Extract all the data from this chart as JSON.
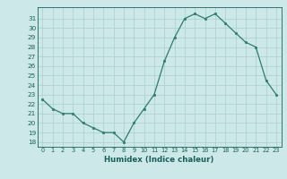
{
  "x": [
    0,
    1,
    2,
    3,
    4,
    5,
    6,
    7,
    8,
    9,
    10,
    11,
    12,
    13,
    14,
    15,
    16,
    17,
    18,
    19,
    20,
    21,
    22,
    23
  ],
  "y": [
    22.5,
    21.5,
    21.0,
    21.0,
    20.0,
    19.5,
    19.0,
    19.0,
    18.0,
    20.0,
    21.5,
    23.0,
    26.5,
    29.0,
    31.0,
    31.5,
    31.0,
    31.5,
    30.5,
    29.5,
    28.5,
    28.0,
    24.5,
    23.0
  ],
  "xlabel": "Humidex (Indice chaleur)",
  "ylim": [
    17.5,
    32.2
  ],
  "xlim": [
    -0.5,
    23.5
  ],
  "yticks": [
    18,
    19,
    20,
    21,
    22,
    23,
    24,
    25,
    26,
    27,
    28,
    29,
    30,
    31
  ],
  "xticks": [
    0,
    1,
    2,
    3,
    4,
    5,
    6,
    7,
    8,
    9,
    10,
    11,
    12,
    13,
    14,
    15,
    16,
    17,
    18,
    19,
    20,
    21,
    22,
    23
  ],
  "line_color": "#2d7d6e",
  "marker_color": "#2d7d6e",
  "bg_color": "#cce8e8",
  "grid_color": "#aacece",
  "axis_label_color": "#1a5f5a",
  "tick_color": "#1a5f5a"
}
